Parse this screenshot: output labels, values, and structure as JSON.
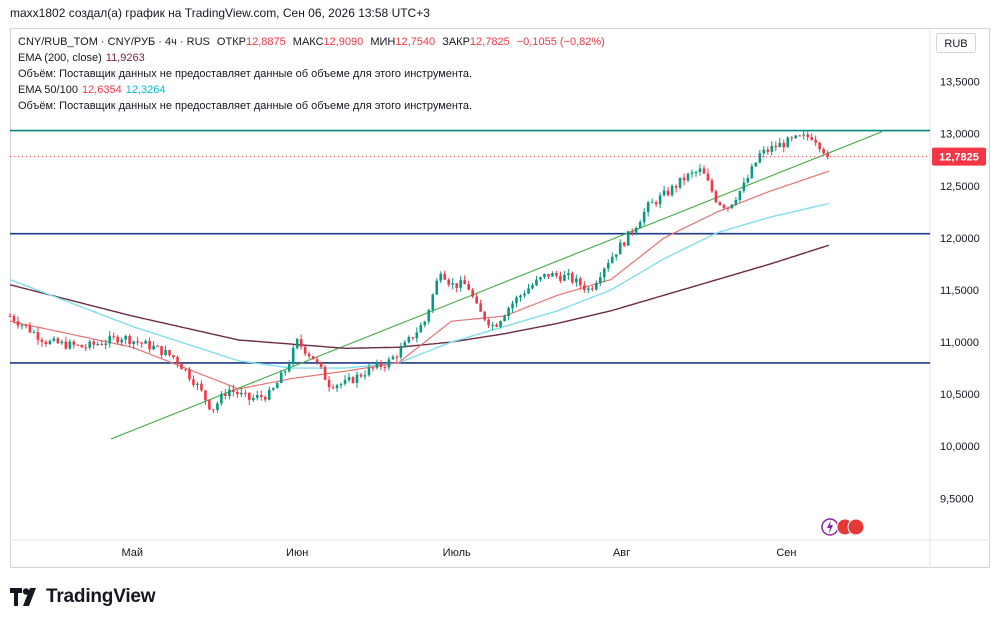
{
  "caption": "maxx1802 создал(а) график на TradingView.com, Сен 06, 2026 13:58 UTC+3",
  "legend": {
    "symbol": "CNY/RUB_TOM · CNY/РУБ · 4ч · RUS",
    "open_label": "ОТКР",
    "open": "12,8875",
    "high_label": "МАКС",
    "high": "12,9090",
    "low_label": "МИН",
    "low": "12,7540",
    "close_label": "ЗАКР",
    "close": "12,7825",
    "change": "−0,1055 (−0,82%)",
    "ema200_label": "EMA (200, close)",
    "ema200_value": "11,9263",
    "volume_note": "Объём: Поставщик данных не предоставляет данные об объеме для этого инструмента.",
    "ema50100_label": "EMA 50/100",
    "ema50_value": "12,6354",
    "ema100_value": "12,3264"
  },
  "currency_button": "RUB",
  "price_badge": "12,7825",
  "brand": "TradingView",
  "colors": {
    "up": "#089981",
    "down": "#f23645",
    "ema50": "#e57373",
    "ema100": "#80deea",
    "ema200": "#6d2a45",
    "trendline": "#4caf50",
    "hline": "#1e3a8a",
    "top_line": "#00897b"
  },
  "chart_data": {
    "type": "candlestick",
    "y_ticks": [
      "13,5000",
      "13,0000",
      "12,5000",
      "12,0000",
      "11,5000",
      "11,0000",
      "10,5000",
      "10,0000",
      "9,5000"
    ],
    "y_tick_values": [
      13.5,
      13.0,
      12.5,
      12.0,
      11.5,
      11.0,
      10.5,
      10.0,
      9.5
    ],
    "ylim": [
      9.1,
      13.65
    ],
    "x_ticks": [
      "Май",
      "Июн",
      "Июль",
      "Авг",
      "Сен"
    ],
    "x_tick_days": [
      0,
      31,
      61,
      92,
      123
    ],
    "xlim_days": [
      -23,
      150
    ],
    "last_day": 131,
    "horizontal_lines": [
      13.03,
      12.04,
      10.8
    ],
    "trendline": {
      "from": [
        -4,
        10.07
      ],
      "to": [
        141,
        13.02
      ]
    },
    "price_path": [
      [
        -23,
        11.25
      ],
      [
        -16,
        11.0
      ],
      [
        -9,
        10.95
      ],
      [
        -2,
        11.05
      ],
      [
        4,
        10.95
      ],
      [
        8,
        10.85
      ],
      [
        12,
        10.6
      ],
      [
        15,
        10.35
      ],
      [
        18,
        10.55
      ],
      [
        22,
        10.45
      ],
      [
        26,
        10.5
      ],
      [
        29,
        10.75
      ],
      [
        31,
        11.0
      ],
      [
        34,
        10.85
      ],
      [
        37,
        10.6
      ],
      [
        40,
        10.6
      ],
      [
        44,
        10.72
      ],
      [
        48,
        10.8
      ],
      [
        51,
        10.95
      ],
      [
        55,
        11.2
      ],
      [
        58,
        11.7
      ],
      [
        60,
        11.55
      ],
      [
        63,
        11.55
      ],
      [
        65,
        11.3
      ],
      [
        68,
        11.15
      ],
      [
        71,
        11.35
      ],
      [
        74,
        11.5
      ],
      [
        78,
        11.65
      ],
      [
        82,
        11.62
      ],
      [
        86,
        11.5
      ],
      [
        89,
        11.75
      ],
      [
        93,
        12.0
      ],
      [
        97,
        12.3
      ],
      [
        101,
        12.45
      ],
      [
        104,
        12.58
      ],
      [
        107,
        12.65
      ],
      [
        110,
        12.35
      ],
      [
        112,
        12.3
      ],
      [
        115,
        12.5
      ],
      [
        118,
        12.8
      ],
      [
        121,
        12.88
      ],
      [
        125,
        12.95
      ],
      [
        128,
        12.98
      ],
      [
        131,
        12.78
      ]
    ],
    "ema50_path": [
      [
        -23,
        11.2
      ],
      [
        0,
        10.95
      ],
      [
        20,
        10.55
      ],
      [
        30,
        10.65
      ],
      [
        40,
        10.72
      ],
      [
        50,
        10.8
      ],
      [
        60,
        11.2
      ],
      [
        70,
        11.25
      ],
      [
        80,
        11.45
      ],
      [
        90,
        11.6
      ],
      [
        100,
        12.0
      ],
      [
        110,
        12.25
      ],
      [
        120,
        12.45
      ],
      [
        131,
        12.64
      ]
    ],
    "ema100_path": [
      [
        -23,
        11.6
      ],
      [
        0,
        11.15
      ],
      [
        20,
        10.82
      ],
      [
        30,
        10.75
      ],
      [
        40,
        10.75
      ],
      [
        50,
        10.8
      ],
      [
        60,
        11.0
      ],
      [
        70,
        11.15
      ],
      [
        80,
        11.3
      ],
      [
        90,
        11.5
      ],
      [
        100,
        11.8
      ],
      [
        110,
        12.05
      ],
      [
        120,
        12.2
      ],
      [
        131,
        12.33
      ]
    ],
    "ema200_path": [
      [
        -23,
        11.55
      ],
      [
        0,
        11.25
      ],
      [
        20,
        11.02
      ],
      [
        30,
        10.98
      ],
      [
        40,
        10.94
      ],
      [
        50,
        10.95
      ],
      [
        60,
        11.0
      ],
      [
        70,
        11.08
      ],
      [
        80,
        11.18
      ],
      [
        90,
        11.3
      ],
      [
        100,
        11.45
      ],
      [
        110,
        11.6
      ],
      [
        120,
        11.75
      ],
      [
        131,
        11.93
      ]
    ]
  }
}
